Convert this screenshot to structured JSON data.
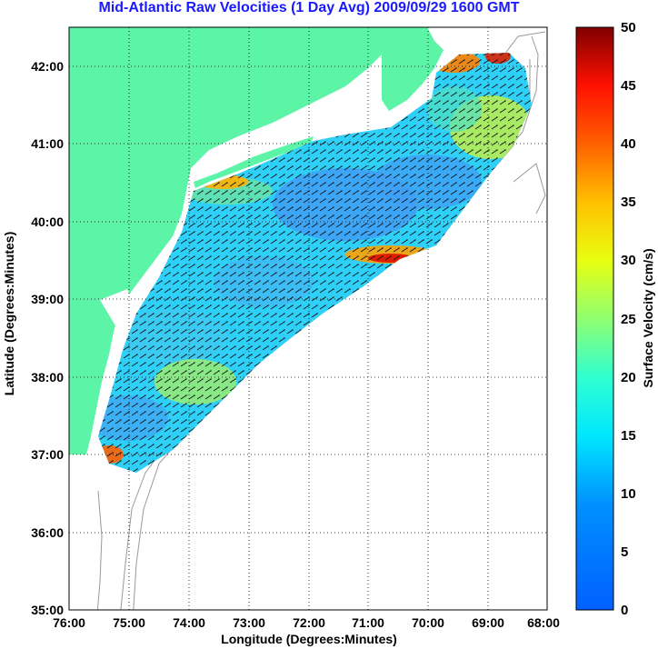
{
  "title": "Mid-Atlantic Raw Velocities (1 Day Avg) 2009/09/29 1600 GMT",
  "x_axis": {
    "label": "Longitude (Degrees:Minutes)",
    "ticks": [
      "76:00",
      "75:00",
      "74:00",
      "73:00",
      "72:00",
      "71:00",
      "70:00",
      "69:00",
      "68:00"
    ]
  },
  "y_axis": {
    "label": "Latitude (Degrees:Minutes)",
    "ticks": [
      "35:00",
      "36:00",
      "37:00",
      "38:00",
      "39:00",
      "40:00",
      "41:00",
      "42:00"
    ]
  },
  "colorbar": {
    "label": "Surface Velocity (cm/s)",
    "ticks": [
      "0",
      "5",
      "10",
      "15",
      "20",
      "25",
      "30",
      "35",
      "40",
      "45",
      "50"
    ],
    "range": [
      0,
      50
    ]
  },
  "colors": {
    "land": "#5cf5a8",
    "title": "#1a1aff",
    "bathymetry": "#999999"
  },
  "map": {
    "lon_range": [
      -76,
      -68
    ],
    "lat_range": [
      35,
      42.5
    ],
    "grid": "dotted",
    "colormap": "jet"
  }
}
